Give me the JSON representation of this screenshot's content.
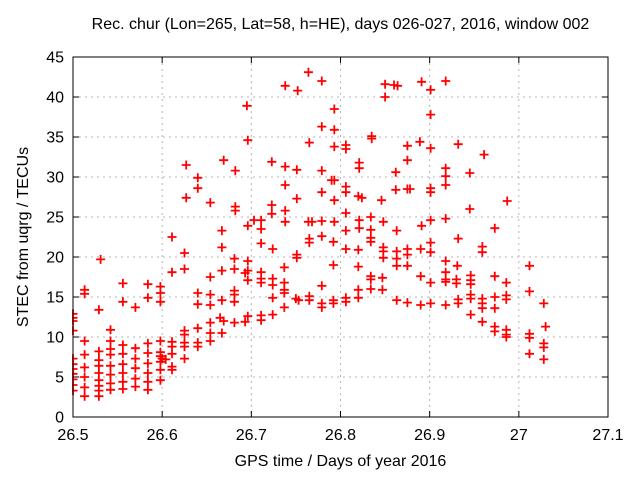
{
  "chart_data": {
    "type": "scatter",
    "title": "Rec. chur (Lon=265, Lat=58, h=HE), days 026-027, 2016, window 002",
    "xlabel": "GPS time / Days of year 2016",
    "ylabel": "STEC from uqrg / TECUs",
    "xlim": [
      26.5,
      27.1
    ],
    "ylim": [
      0,
      45
    ],
    "xticks": [
      26.5,
      26.6,
      26.7,
      26.8,
      26.9,
      27.0,
      27.1
    ],
    "xtick_labels": [
      "26.5",
      "26.6",
      "26.7",
      "26.8",
      "26.9",
      "27",
      "27.1"
    ],
    "yticks": [
      0,
      5,
      10,
      15,
      20,
      25,
      30,
      35,
      40,
      45
    ],
    "ytick_labels": [
      "0",
      "5",
      "10",
      "15",
      "20",
      "25",
      "30",
      "35",
      "40",
      "45"
    ],
    "grid": true,
    "legend_position": "none",
    "marker": {
      "shape": "plus",
      "color": "#ff0000",
      "size": 9,
      "stroke_width": 1.8
    },
    "grid_color": "#b5b5b5",
    "axis_color": "#000000",
    "background_color": "#ffffff",
    "points": [
      [
        26.5,
        12.9
      ],
      [
        26.5,
        12.4
      ],
      [
        26.5,
        12.0
      ],
      [
        26.5,
        10.8
      ],
      [
        26.5,
        7.3
      ],
      [
        26.5,
        6.6
      ],
      [
        26.5,
        6.0
      ],
      [
        26.5,
        5.4
      ],
      [
        26.5,
        4.7
      ],
      [
        26.5,
        4.0
      ],
      [
        26.5,
        3.3
      ],
      [
        26.513,
        15.9
      ],
      [
        26.513,
        15.4
      ],
      [
        26.513,
        9.5
      ],
      [
        26.513,
        7.8
      ],
      [
        26.513,
        6.2
      ],
      [
        26.513,
        5.0
      ],
      [
        26.513,
        3.7
      ],
      [
        26.513,
        2.6
      ],
      [
        26.529,
        13.4
      ],
      [
        26.529,
        8.2
      ],
      [
        26.529,
        7.1
      ],
      [
        26.529,
        6.4
      ],
      [
        26.529,
        5.5
      ],
      [
        26.529,
        4.6
      ],
      [
        26.529,
        3.9
      ],
      [
        26.529,
        3.3
      ],
      [
        26.529,
        2.6
      ],
      [
        26.531,
        19.7
      ],
      [
        26.542,
        10.9
      ],
      [
        26.542,
        9.5
      ],
      [
        26.542,
        8.5
      ],
      [
        26.542,
        7.8
      ],
      [
        26.542,
        6.4
      ],
      [
        26.542,
        5.3
      ],
      [
        26.542,
        4.2
      ],
      [
        26.542,
        3.4
      ],
      [
        26.556,
        16.7
      ],
      [
        26.556,
        14.4
      ],
      [
        26.556,
        9.0
      ],
      [
        26.556,
        7.9
      ],
      [
        26.556,
        6.6
      ],
      [
        26.556,
        5.5
      ],
      [
        26.556,
        4.4
      ],
      [
        26.556,
        3.5
      ],
      [
        26.57,
        13.7
      ],
      [
        26.57,
        8.6
      ],
      [
        26.57,
        7.3
      ],
      [
        26.57,
        6.1
      ],
      [
        26.57,
        4.8
      ],
      [
        26.57,
        3.8
      ],
      [
        26.584,
        16.6
      ],
      [
        26.584,
        14.9
      ],
      [
        26.584,
        9.2
      ],
      [
        26.584,
        8.0
      ],
      [
        26.584,
        6.7
      ],
      [
        26.584,
        5.5
      ],
      [
        26.584,
        4.4
      ],
      [
        26.584,
        3.4
      ],
      [
        26.598,
        16.3
      ],
      [
        26.598,
        15.5
      ],
      [
        26.598,
        14.4
      ],
      [
        26.598,
        9.5
      ],
      [
        26.598,
        8.1
      ],
      [
        26.598,
        7.6
      ],
      [
        26.598,
        6.9
      ],
      [
        26.598,
        5.9
      ],
      [
        26.598,
        4.6
      ],
      [
        26.6,
        7.3
      ],
      [
        26.604,
        7.2
      ],
      [
        26.611,
        22.5
      ],
      [
        26.611,
        18.1
      ],
      [
        26.611,
        9.4
      ],
      [
        26.611,
        8.8
      ],
      [
        26.611,
        7.9
      ],
      [
        26.611,
        6.3
      ],
      [
        26.611,
        5.9
      ],
      [
        26.625,
        20.5
      ],
      [
        26.625,
        18.5
      ],
      [
        26.625,
        10.8
      ],
      [
        26.625,
        10.3
      ],
      [
        26.625,
        9.3
      ],
      [
        26.625,
        8.8
      ],
      [
        26.625,
        7.3
      ],
      [
        26.627,
        31.5
      ],
      [
        26.627,
        27.4
      ],
      [
        26.64,
        29.9
      ],
      [
        26.64,
        28.6
      ],
      [
        26.64,
        15.5
      ],
      [
        26.64,
        14.1
      ],
      [
        26.64,
        11.1
      ],
      [
        26.64,
        9.3
      ],
      [
        26.64,
        8.8
      ],
      [
        26.654,
        26.8
      ],
      [
        26.654,
        17.5
      ],
      [
        26.654,
        15.3
      ],
      [
        26.654,
        14.0
      ],
      [
        26.654,
        11.8
      ],
      [
        26.654,
        10.5
      ],
      [
        26.654,
        9.5
      ],
      [
        26.667,
        23.3
      ],
      [
        26.667,
        21.2
      ],
      [
        26.667,
        18.3
      ],
      [
        26.667,
        14.6
      ],
      [
        26.665,
        12.4
      ],
      [
        26.669,
        12.0
      ],
      [
        26.667,
        10.5
      ],
      [
        26.669,
        32.1
      ],
      [
        26.681,
        19.8
      ],
      [
        26.681,
        18.5
      ],
      [
        26.681,
        15.8
      ],
      [
        26.681,
        15.3
      ],
      [
        26.681,
        14.4
      ],
      [
        26.681,
        11.8
      ],
      [
        26.682,
        30.8
      ],
      [
        26.682,
        26.3
      ],
      [
        26.682,
        25.8
      ],
      [
        26.693,
        18.0
      ],
      [
        26.693,
        11.9
      ],
      [
        26.695,
        38.9
      ],
      [
        26.696,
        34.6
      ],
      [
        26.696,
        23.9
      ],
      [
        26.696,
        19.5
      ],
      [
        26.696,
        18.3
      ],
      [
        26.696,
        17.1
      ],
      [
        26.696,
        12.6
      ],
      [
        26.703,
        24.6
      ],
      [
        26.711,
        24.6
      ],
      [
        26.711,
        23.5
      ],
      [
        26.711,
        21.7
      ],
      [
        26.711,
        18.1
      ],
      [
        26.711,
        17.3
      ],
      [
        26.711,
        16.8
      ],
      [
        26.711,
        12.7
      ],
      [
        26.711,
        12.1
      ],
      [
        26.723,
        31.9
      ],
      [
        26.723,
        26.5
      ],
      [
        26.723,
        25.4
      ],
      [
        26.724,
        21.0
      ],
      [
        26.724,
        17.3
      ],
      [
        26.724,
        16.5
      ],
      [
        26.724,
        14.9
      ],
      [
        26.724,
        12.8
      ],
      [
        26.737,
        18.7
      ],
      [
        26.737,
        16.8
      ],
      [
        26.737,
        15.9
      ],
      [
        26.737,
        15.5
      ],
      [
        26.737,
        13.7
      ],
      [
        26.738,
        41.4
      ],
      [
        26.738,
        31.3
      ],
      [
        26.738,
        29.0
      ],
      [
        26.738,
        25.8
      ],
      [
        26.738,
        24.4
      ],
      [
        26.75,
        14.8
      ],
      [
        26.753,
        14.6
      ],
      [
        26.751,
        30.9
      ],
      [
        26.751,
        27.3
      ],
      [
        26.751,
        20.3
      ],
      [
        26.751,
        19.9
      ],
      [
        26.752,
        40.8
      ],
      [
        26.764,
        43.1
      ],
      [
        26.764,
        24.4
      ],
      [
        26.768,
        24.4
      ],
      [
        26.765,
        34.3
      ],
      [
        26.765,
        22.3
      ],
      [
        26.765,
        21.8
      ],
      [
        26.765,
        15.1
      ],
      [
        26.765,
        14.6
      ],
      [
        26.779,
        42.0
      ],
      [
        26.779,
        36.3
      ],
      [
        26.779,
        30.8
      ],
      [
        26.779,
        28.1
      ],
      [
        26.779,
        24.5
      ],
      [
        26.779,
        22.6
      ],
      [
        26.779,
        16.4
      ],
      [
        26.779,
        14.2
      ],
      [
        26.779,
        13.7
      ],
      [
        26.79,
        29.6
      ],
      [
        26.793,
        29.6
      ],
      [
        26.792,
        21.9
      ],
      [
        26.792,
        19.0
      ],
      [
        26.792,
        14.6
      ],
      [
        26.792,
        14.2
      ],
      [
        26.793,
        38.5
      ],
      [
        26.793,
        35.9
      ],
      [
        26.793,
        33.8
      ],
      [
        26.793,
        27.1
      ],
      [
        26.793,
        24.4
      ],
      [
        26.806,
        34.0
      ],
      [
        26.806,
        33.5
      ],
      [
        26.806,
        28.8
      ],
      [
        26.806,
        28.1
      ],
      [
        26.806,
        25.5
      ],
      [
        26.806,
        23.3
      ],
      [
        26.806,
        21.0
      ],
      [
        26.806,
        14.9
      ],
      [
        26.806,
        14.4
      ],
      [
        26.82,
        27.6
      ],
      [
        26.824,
        27.4
      ],
      [
        26.82,
        20.9
      ],
      [
        26.82,
        18.8
      ],
      [
        26.82,
        15.9
      ],
      [
        26.82,
        14.9
      ],
      [
        26.821,
        31.8
      ],
      [
        26.821,
        31.1
      ],
      [
        26.821,
        24.6
      ],
      [
        26.821,
        23.6
      ],
      [
        26.834,
        25.0
      ],
      [
        26.834,
        23.4
      ],
      [
        26.834,
        22.4
      ],
      [
        26.834,
        21.9
      ],
      [
        26.834,
        17.6
      ],
      [
        26.834,
        17.2
      ],
      [
        26.834,
        16.0
      ],
      [
        26.835,
        35.1
      ],
      [
        26.835,
        34.8
      ],
      [
        26.846,
        27.1
      ],
      [
        26.847,
        17.4
      ],
      [
        26.847,
        15.9
      ],
      [
        26.848,
        24.4
      ],
      [
        26.848,
        21.2
      ],
      [
        26.848,
        20.7
      ],
      [
        26.848,
        19.9
      ],
      [
        26.85,
        41.6
      ],
      [
        26.85,
        40.0
      ],
      [
        26.86,
        41.5
      ],
      [
        26.864,
        41.4
      ],
      [
        26.862,
        30.6
      ],
      [
        26.862,
        28.4
      ],
      [
        26.863,
        23.3
      ],
      [
        26.863,
        20.7
      ],
      [
        26.863,
        19.8
      ],
      [
        26.863,
        18.9
      ],
      [
        26.863,
        14.6
      ],
      [
        26.875,
        33.9
      ],
      [
        26.875,
        32.1
      ],
      [
        26.875,
        28.5
      ],
      [
        26.878,
        28.5
      ],
      [
        26.875,
        21.0
      ],
      [
        26.875,
        20.3
      ],
      [
        26.875,
        18.9
      ],
      [
        26.875,
        14.3
      ],
      [
        26.889,
        34.4
      ],
      [
        26.89,
        21.0
      ],
      [
        26.89,
        17.6
      ],
      [
        26.89,
        14.0
      ],
      [
        26.891,
        41.9
      ],
      [
        26.891,
        23.9
      ],
      [
        26.901,
        40.9
      ],
      [
        26.901,
        37.8
      ],
      [
        26.901,
        33.6
      ],
      [
        26.901,
        28.6
      ],
      [
        26.901,
        28.1
      ],
      [
        26.901,
        24.6
      ],
      [
        26.901,
        21.8
      ],
      [
        26.901,
        20.6
      ],
      [
        26.901,
        16.8
      ],
      [
        26.901,
        14.2
      ],
      [
        26.918,
        42.0
      ],
      [
        26.918,
        31.1
      ],
      [
        26.918,
        30.1
      ],
      [
        26.918,
        29.0
      ],
      [
        26.918,
        24.8
      ],
      [
        26.918,
        19.5
      ],
      [
        26.918,
        18.1
      ],
      [
        26.918,
        17.2
      ],
      [
        26.918,
        16.9
      ],
      [
        26.918,
        14.0
      ],
      [
        26.93,
        17.2
      ],
      [
        26.93,
        16.7
      ],
      [
        26.931,
        18.9
      ],
      [
        26.932,
        34.1
      ],
      [
        26.932,
        22.3
      ],
      [
        26.932,
        14.7
      ],
      [
        26.932,
        14.2
      ],
      [
        26.945,
        30.5
      ],
      [
        26.945,
        26.0
      ],
      [
        26.946,
        17.7
      ],
      [
        26.946,
        17.1
      ],
      [
        26.946,
        16.6
      ],
      [
        26.946,
        15.3
      ],
      [
        26.946,
        14.8
      ],
      [
        26.946,
        12.8
      ],
      [
        26.959,
        21.3
      ],
      [
        26.959,
        20.6
      ],
      [
        26.959,
        14.8
      ],
      [
        26.959,
        14.2
      ],
      [
        26.959,
        13.6
      ],
      [
        26.959,
        11.9
      ],
      [
        26.961,
        32.8
      ],
      [
        26.973,
        23.6
      ],
      [
        26.973,
        17.6
      ],
      [
        26.973,
        15.0
      ],
      [
        26.973,
        13.6
      ],
      [
        26.973,
        11.3
      ],
      [
        26.973,
        10.7
      ],
      [
        26.986,
        16.8
      ],
      [
        26.986,
        15.2
      ],
      [
        26.986,
        14.7
      ],
      [
        26.986,
        10.9
      ],
      [
        26.986,
        10.3
      ],
      [
        26.986,
        10.0
      ],
      [
        26.987,
        27.0
      ],
      [
        27.012,
        18.9
      ],
      [
        27.012,
        15.7
      ],
      [
        27.012,
        10.4
      ],
      [
        27.012,
        9.9
      ],
      [
        27.012,
        7.9
      ],
      [
        27.028,
        14.2
      ],
      [
        27.028,
        9.2
      ],
      [
        27.028,
        8.7
      ],
      [
        27.028,
        7.2
      ],
      [
        27.03,
        11.3
      ]
    ]
  }
}
